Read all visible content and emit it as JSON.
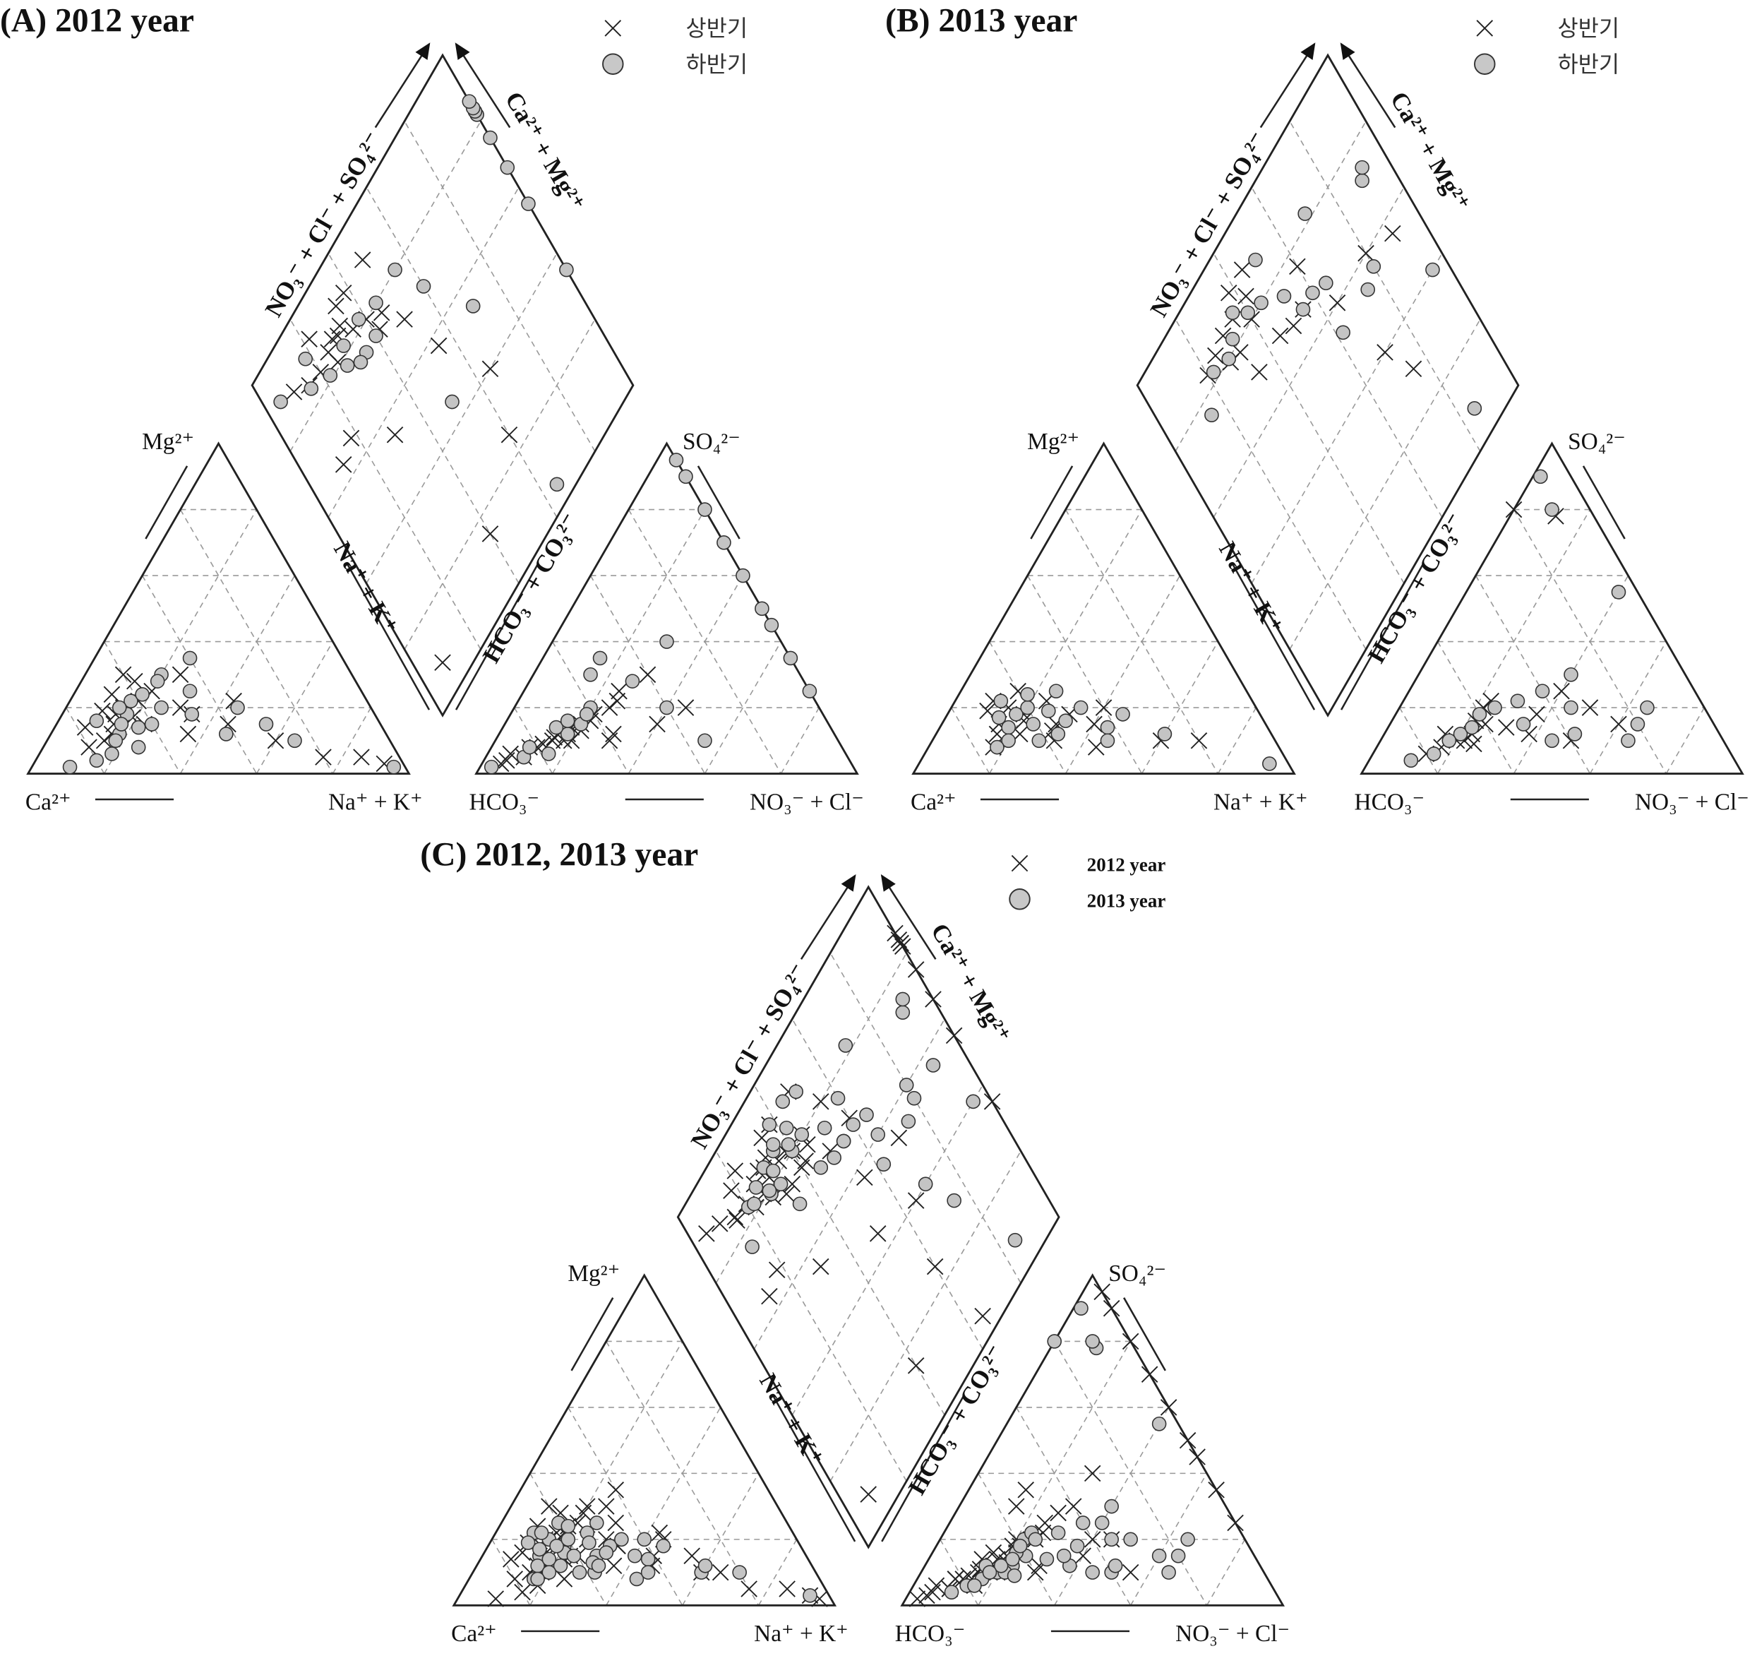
{
  "chart_data": [
    {
      "type": "scatter",
      "subtype": "piper",
      "title": "(A) 2012 year",
      "legend": [
        "상반기",
        "하반기"
      ],
      "legend_position": "top-right",
      "grid": true,
      "grid_step_percent": 20,
      "labels": {
        "cation_top": "Mg²⁺",
        "cation_left": "Ca²⁺",
        "cation_right": "Na⁺ + K⁺",
        "anion_top": "SO₄²⁻",
        "anion_left": "HCO₃⁻",
        "anion_right": "NO₃⁻ + Cl⁻",
        "diamond_upper_left": "NO₃⁻ + Cl⁻ + SO₄²⁻",
        "diamond_upper_right": "Ca²⁺ + Mg²⁺",
        "diamond_lower_left": "Na⁺ + K⁺",
        "diamond_lower_right": "HCO₃⁻ + CO₃²⁻"
      },
      "point_fields": [
        "Ca_pct",
        "Mg_pct",
        "HCO3_pct",
        "SO4_pct"
      ],
      "series": [
        {
          "name": "상반기",
          "marker": "x",
          "points": [
            [
              70,
              15,
              75,
              10
            ],
            [
              65,
              20,
              70,
              12
            ],
            [
              60,
              22,
              65,
              15
            ],
            [
              72,
              12,
              80,
              8
            ],
            [
              55,
              25,
              60,
              18
            ],
            [
              68,
              18,
              72,
              10
            ],
            [
              75,
              10,
              85,
              5
            ],
            [
              62,
              15,
              55,
              20
            ],
            [
              58,
              28,
              68,
              14
            ],
            [
              80,
              8,
              90,
              4
            ],
            [
              50,
              20,
              50,
              25
            ],
            [
              66,
              24,
              62,
              16
            ],
            [
              45,
              30,
              58,
              12
            ],
            [
              40,
              15,
              70,
              10
            ],
            [
              20,
              5,
              40,
              30
            ],
            [
              30,
              10,
              35,
              20
            ],
            [
              10,
              5,
              60,
              10
            ],
            [
              5,
              3,
              92,
              3
            ],
            [
              64,
              17,
              74,
              11
            ],
            [
              71,
              19,
              66,
              13
            ],
            [
              35,
              22,
              45,
              15
            ],
            [
              52,
              12,
              88,
              6
            ],
            [
              78,
              14,
              78,
              9
            ],
            [
              60,
              30,
              52,
              22
            ],
            [
              48,
              18,
              82,
              8
            ]
          ]
        },
        {
          "name": "하반기",
          "marker": "circle",
          "points": [
            [
              70,
              12,
              70,
              12
            ],
            [
              65,
              18,
              0,
              60
            ],
            [
              60,
              15,
              0,
              50
            ],
            [
              72,
              10,
              0,
              35
            ],
            [
              55,
              20,
              60,
              20
            ],
            [
              68,
              15,
              0,
              80
            ],
            [
              75,
              6,
              78,
              6
            ],
            [
              50,
              30,
              55,
              30
            ],
            [
              62,
              22,
              0,
              70
            ],
            [
              80,
              4,
              85,
              5
            ],
            [
              45,
              25,
              40,
              20
            ],
            [
              66,
              20,
              0,
              45
            ],
            [
              40,
              35,
              65,
              15
            ],
            [
              35,
              20,
              0,
              25
            ],
            [
              30,
              15,
              50,
              35
            ],
            [
              25,
              10,
              0,
              90
            ],
            [
              3,
              2,
              35,
              10
            ],
            [
              88,
              2,
              95,
              2
            ],
            [
              64,
              14,
              72,
              14
            ],
            [
              58,
              24,
              62,
              18
            ],
            [
              48,
              18,
              0,
              95
            ],
            [
              74,
              16,
              82,
              8
            ],
            [
              52,
              28,
              45,
              28
            ],
            [
              42,
              12,
              30,
              40
            ],
            [
              67,
              8,
              68,
              16
            ]
          ]
        }
      ]
    },
    {
      "type": "scatter",
      "subtype": "piper",
      "title": "(B) 2013 year",
      "legend": [
        "상반기",
        "하반기"
      ],
      "legend_position": "top-right",
      "grid": true,
      "grid_step_percent": 20,
      "labels": {
        "cation_top": "Mg²⁺",
        "cation_left": "Ca²⁺",
        "cation_right": "Na⁺ + K⁺",
        "anion_top": "SO₄²⁻",
        "anion_left": "HCO₃⁻",
        "anion_right": "NO₃⁻ + Cl⁻",
        "diamond_upper_left": "NO₃⁻ + Cl⁻ + SO₄²⁻",
        "diamond_upper_right": "Ca²⁺ + Mg²⁺",
        "diamond_lower_left": "Na⁺ + K⁺",
        "diamond_lower_right": "HCO₃⁻ + CO₃²⁻"
      },
      "point_fields": [
        "Ca_pct",
        "Mg_pct",
        "HCO3_pct",
        "SO4_pct"
      ],
      "series": [
        {
          "name": "상반기",
          "marker": "x",
          "points": [
            [
              70,
              15,
              70,
              10
            ],
            [
              65,
              20,
              65,
              12
            ],
            [
              62,
              18,
              60,
              15
            ],
            [
              55,
              15,
              55,
              14
            ],
            [
              72,
              12,
              75,
              8
            ],
            [
              68,
              22,
              62,
              16
            ],
            [
              58,
              10,
              50,
              12
            ],
            [
              50,
              18,
              45,
              18
            ],
            [
              75,
              8,
              80,
              6
            ],
            [
              60,
              25,
              58,
              20
            ],
            [
              45,
              15,
              35,
              25
            ],
            [
              40,
              20,
              20,
              80
            ],
            [
              66,
              12,
              68,
              10
            ],
            [
              30,
              10,
              30,
              20
            ],
            [
              63,
              16,
              72,
              12
            ],
            [
              54,
              22,
              40,
              10
            ],
            [
              20,
              10,
              25,
              15
            ],
            [
              71,
              19,
              55,
              22
            ],
            [
              48,
              8,
              10,
              78
            ],
            [
              57,
              13,
              66,
              9
            ]
          ]
        },
        {
          "name": "하반기",
          "marker": "circle",
          "points": [
            [
              68,
              14,
              68,
              12
            ],
            [
              64,
              18,
              60,
              18
            ],
            [
              60,
              20,
              55,
              20
            ],
            [
              70,
              10,
              72,
              10
            ],
            [
              52,
              16,
              40,
              25
            ],
            [
              66,
              22,
              50,
              15
            ],
            [
              56,
              12,
              45,
              10
            ],
            [
              46,
              20,
              35,
              20
            ],
            [
              74,
              8,
              78,
              6
            ],
            [
              58,
              24,
              30,
              30
            ],
            [
              42,
              14,
              20,
              15
            ],
            [
              36,
              18,
              25,
              10
            ],
            [
              62,
              10,
              10,
              80
            ],
            [
              28,
              12,
              5,
              55
            ],
            [
              5,
              3,
              15,
              20
            ],
            [
              69,
              17,
              64,
              14
            ],
            [
              50,
              25,
              48,
              22
            ],
            [
              44,
              10,
              38,
              12
            ],
            [
              61,
              15,
              85,
              4
            ],
            [
              55,
              19,
              8,
              90
            ]
          ]
        }
      ]
    },
    {
      "type": "scatter",
      "subtype": "piper",
      "title": "(C) 2012, 2013 year",
      "legend": [
        "2012 year",
        "2013 year"
      ],
      "legend_position": "top-right",
      "grid": true,
      "grid_step_percent": 20,
      "labels": {
        "cation_top": "Mg²⁺",
        "cation_left": "Ca²⁺",
        "cation_right": "Na⁺ + K⁺",
        "anion_top": "SO₄²⁻",
        "anion_left": "HCO₃⁻",
        "anion_right": "NO₃⁻ + Cl⁻",
        "diamond_upper_left": "NO₃⁻ + Cl⁻ + SO₄²⁻",
        "diamond_upper_right": "Ca²⁺ + Mg²⁺",
        "diamond_lower_left": "Na⁺ + K⁺",
        "diamond_lower_right": "HCO₃⁻ + CO₃²⁻"
      },
      "series": [
        {
          "name": "2012 year",
          "marker": "x",
          "combines": [
            [
              0,
              0
            ],
            [
              0,
              1
            ]
          ]
        },
        {
          "name": "2013 year",
          "marker": "circle",
          "combines": [
            [
              1,
              0
            ],
            [
              1,
              1
            ]
          ]
        }
      ]
    }
  ]
}
